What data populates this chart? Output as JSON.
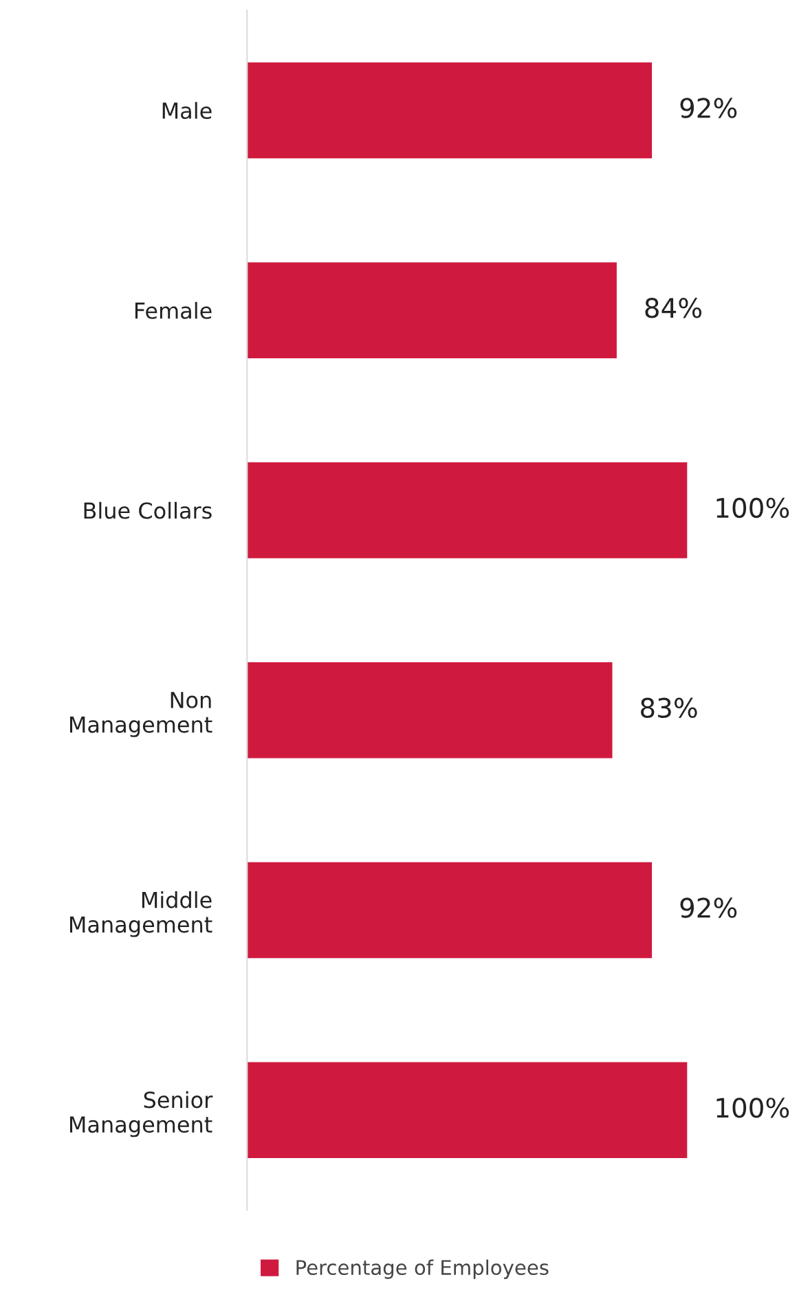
{
  "chart_data": {
    "type": "bar",
    "orientation": "horizontal",
    "categories": [
      "Male",
      "Female",
      "Blue Collars",
      "Non\nManagement",
      "Middle\nManagement",
      "Senior\nManagement"
    ],
    "series": [
      {
        "name": "Percentage of Employees",
        "color": "#d0193e",
        "values": [
          92,
          84,
          100,
          83,
          92,
          100
        ],
        "value_labels": [
          "92%",
          "84%",
          "100%",
          "83%",
          "92%",
          "100%"
        ]
      }
    ],
    "legend": "bottom",
    "grid": false
  }
}
